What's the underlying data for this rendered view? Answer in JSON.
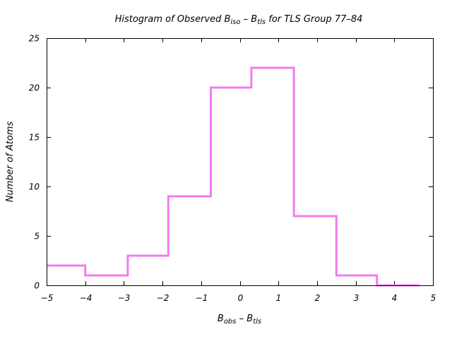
{
  "chart_data": {
    "type": "histogram-step",
    "title": {
      "prefix": "Histogram of Observed B",
      "sub1": "iso",
      "middle": " – B",
      "sub2": "tls",
      "suffix": " for TLS Group 77–84"
    },
    "xlabel": {
      "main1": "B",
      "sub1": "obs",
      "middle": " – B",
      "sub2": "tls"
    },
    "ylabel": "Number of Atoms",
    "xlim": [
      -5,
      5
    ],
    "ylim": [
      0,
      25
    ],
    "xticks": [
      -5,
      -4,
      -3,
      -2,
      -1,
      0,
      1,
      2,
      3,
      4,
      5
    ],
    "yticks": [
      0,
      5,
      10,
      15,
      20,
      25
    ],
    "grid": false,
    "series": [
      {
        "color": "#f07cf0",
        "bins": [
          {
            "x0": -5.0,
            "x1": -4.0,
            "count": 2
          },
          {
            "x0": -4.0,
            "x1": -2.9,
            "count": 1
          },
          {
            "x0": -2.9,
            "x1": -1.85,
            "count": 3
          },
          {
            "x0": -1.85,
            "x1": -0.75,
            "count": 9
          },
          {
            "x0": -0.75,
            "x1": 0.3,
            "count": 20
          },
          {
            "x0": 0.3,
            "x1": 1.4,
            "count": 22
          },
          {
            "x0": 1.4,
            "x1": 2.5,
            "count": 7
          },
          {
            "x0": 2.5,
            "x1": 3.55,
            "count": 1
          },
          {
            "x0": 3.55,
            "x1": 4.65,
            "count": 0
          }
        ]
      }
    ]
  }
}
